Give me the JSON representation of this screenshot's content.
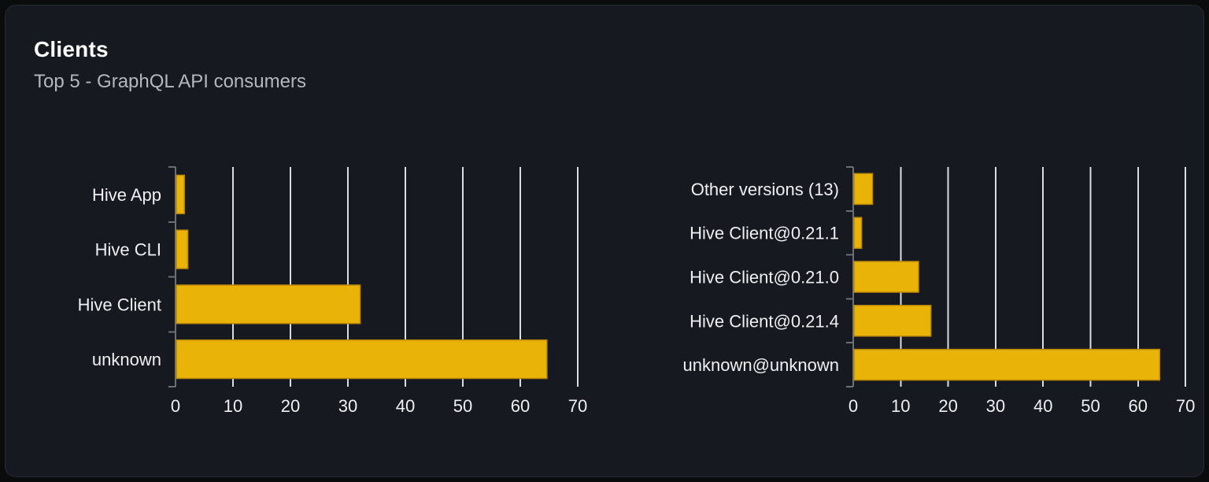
{
  "card": {
    "title": "Clients",
    "subtitle": "Top 5 - GraphQL API consumers"
  },
  "theme": {
    "page_background": "#0a0b0d",
    "card_background": "#16191f",
    "card_border": "#262a31",
    "title_color": "#ffffff",
    "subtitle_color": "#b4b8be",
    "bar_color": "#eab308",
    "bar_border_color": "#b8860b",
    "gridline_color": "#d9dde3",
    "axis_color": "#6b7077",
    "tick_label_color": "#eef0f2",
    "category_label_color": "#eef0f2"
  },
  "chart_data": [
    {
      "type": "bar",
      "name": "clients-by-name",
      "orientation": "horizontal",
      "categories": [
        "Hive App",
        "Hive CLI",
        "Hive Client",
        "unknown"
      ],
      "values": [
        1.4,
        2,
        32,
        64.5
      ],
      "xlabel": "",
      "ylabel": "",
      "xlim": [
        0,
        70
      ],
      "xticks": [
        0,
        10,
        20,
        30,
        40,
        50,
        60,
        70
      ],
      "grid": "vertical",
      "legend": "none"
    },
    {
      "type": "bar",
      "name": "clients-by-version",
      "orientation": "horizontal",
      "categories": [
        "Other versions (13)",
        "Hive Client@0.21.1",
        "Hive Client@0.21.0",
        "Hive Client@0.21.4",
        "unknown@unknown"
      ],
      "values": [
        3.9,
        1.6,
        13.6,
        16.2,
        64.4
      ],
      "xlabel": "",
      "ylabel": "",
      "xlim": [
        0,
        70
      ],
      "xticks": [
        0,
        10,
        20,
        30,
        40,
        50,
        60,
        70
      ],
      "grid": "vertical",
      "legend": "none"
    }
  ]
}
